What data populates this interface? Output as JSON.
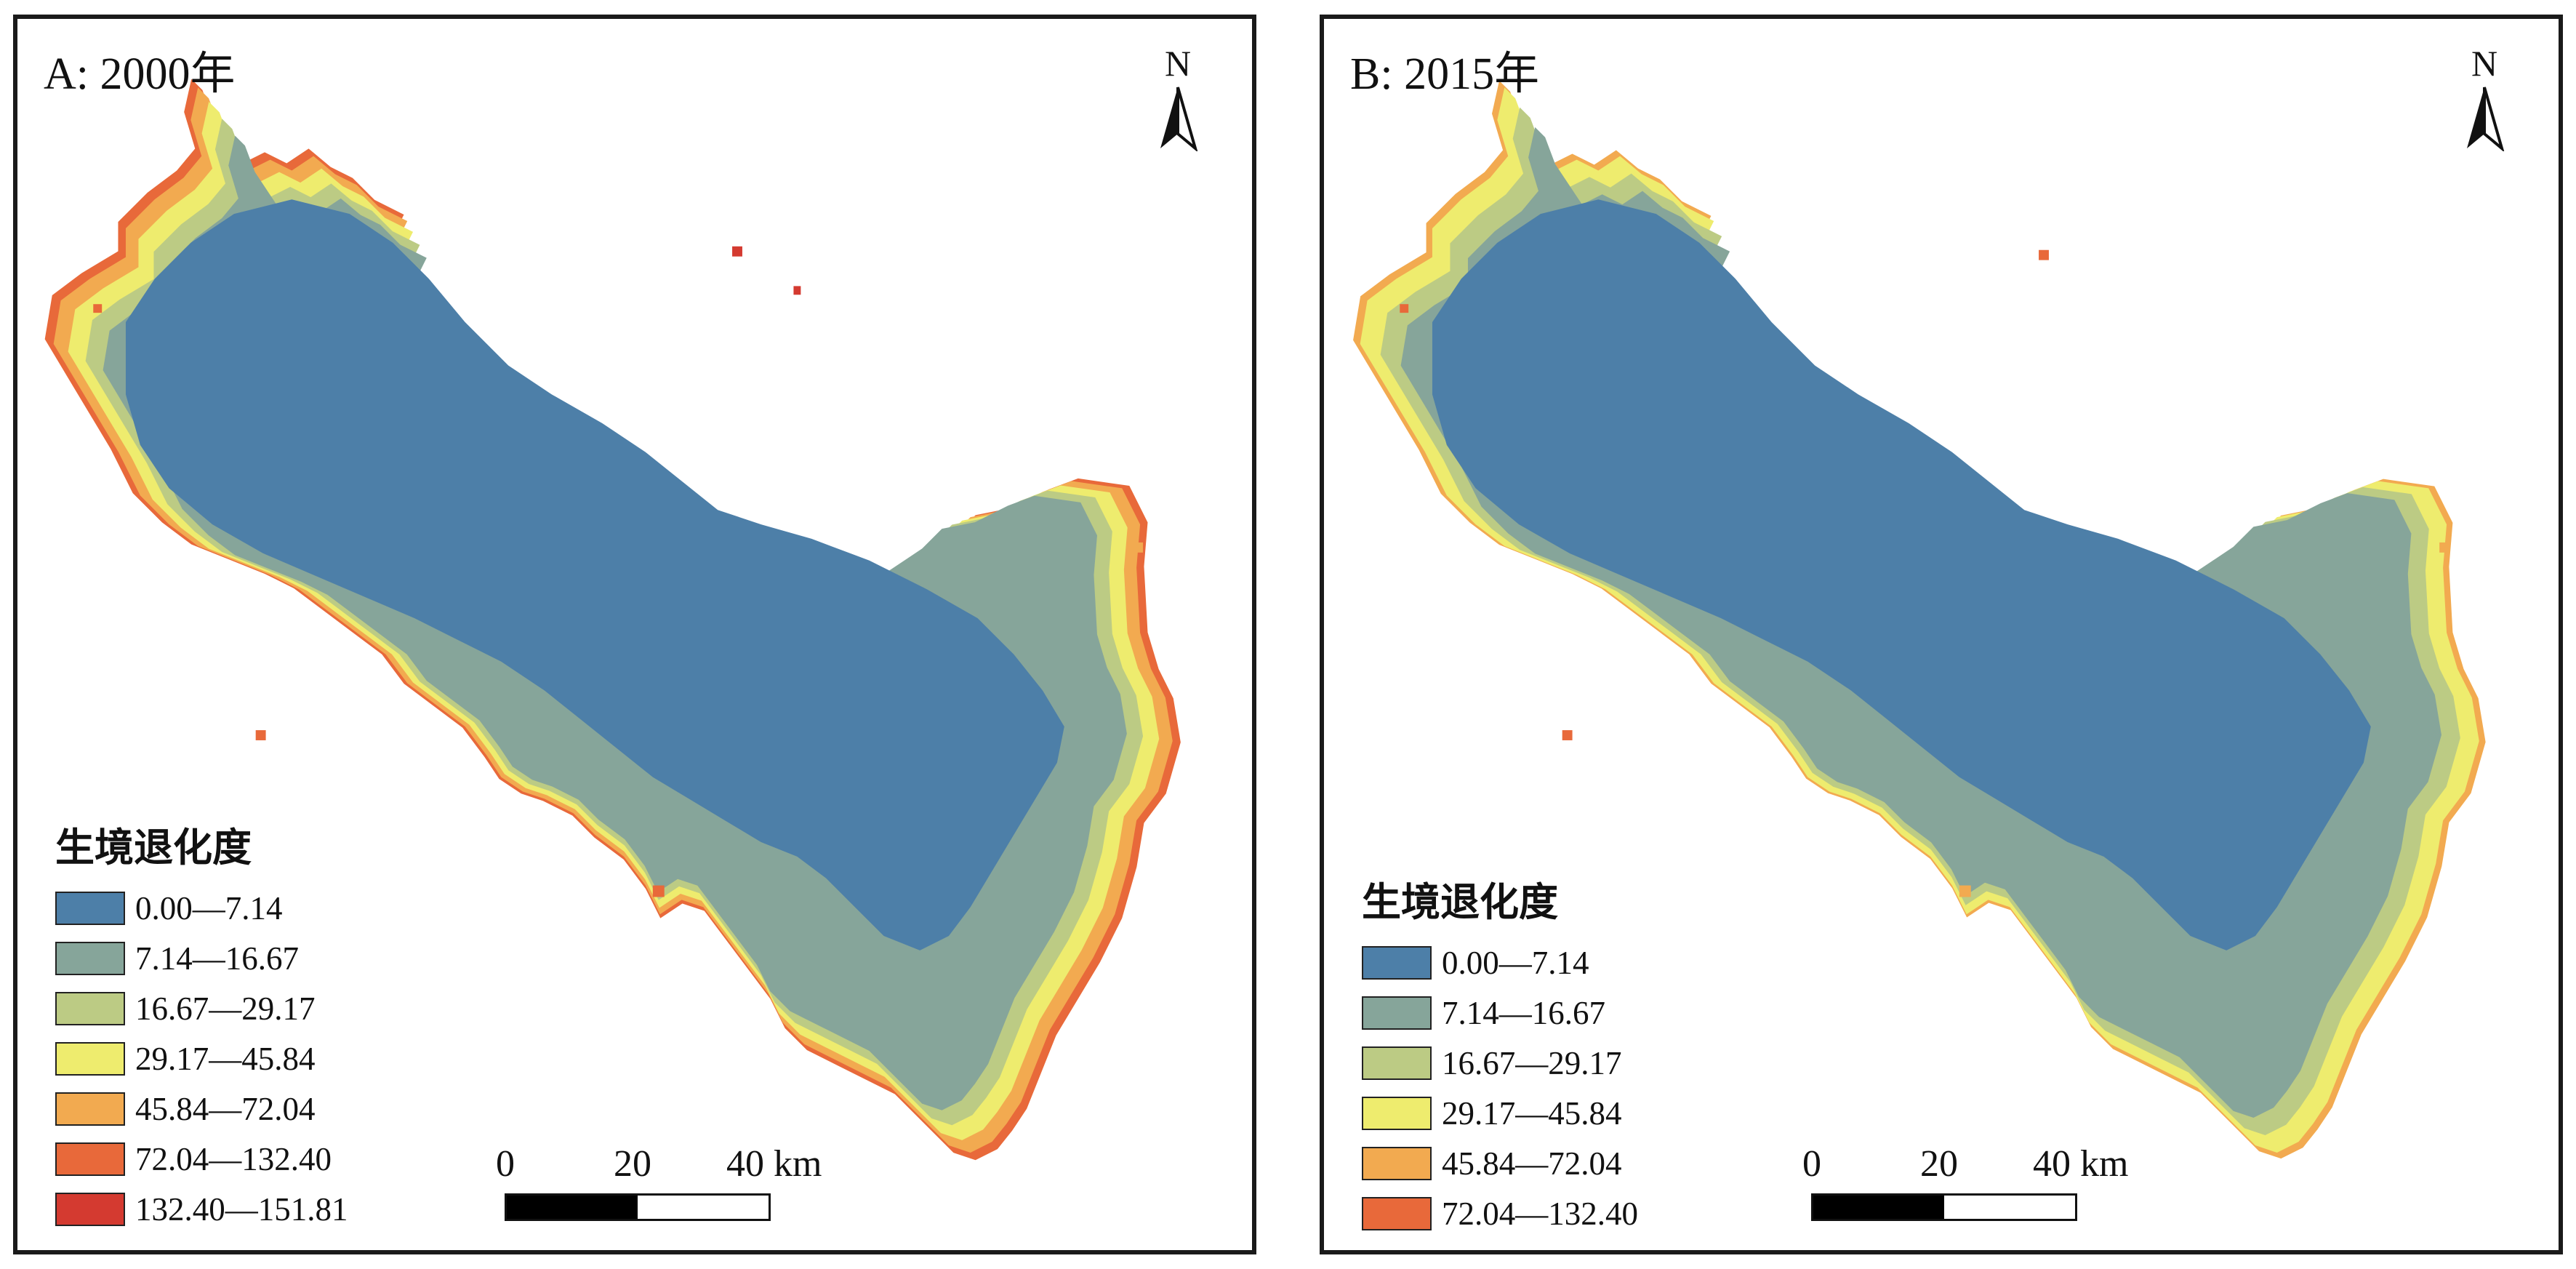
{
  "colors": {
    "class_1": "#4d7fa8",
    "class_2": "#86a59a",
    "class_3": "#bccb84",
    "class_4": "#eeec6e",
    "class_5": "#f2aa50",
    "class_6": "#e8693a",
    "class_7": "#d43a30",
    "frame": "#1a1a1a"
  },
  "north_arrow": {
    "label": "N",
    "icon": "north-arrow-icon"
  },
  "panels": [
    {
      "title": "A: 2000年",
      "legend": {
        "title": "生境退化度",
        "items": [
          {
            "label": "0.00—7.14",
            "color": "#4d7fa8"
          },
          {
            "label": "7.14—16.67",
            "color": "#86a59a"
          },
          {
            "label": "16.67—29.17",
            "color": "#bccb84"
          },
          {
            "label": "29.17—45.84",
            "color": "#eeec6e"
          },
          {
            "label": "45.84—72.04",
            "color": "#f2aa50"
          },
          {
            "label": "72.04—132.40",
            "color": "#e8693a"
          },
          {
            "label": "132.40—151.81",
            "color": "#d43a30"
          }
        ]
      },
      "scale": {
        "labels": [
          "0",
          "20",
          "40 km"
        ]
      }
    },
    {
      "title": "B: 2015年",
      "legend": {
        "title": "生境退化度",
        "items": [
          {
            "label": "0.00—7.14",
            "color": "#4d7fa8"
          },
          {
            "label": "7.14—16.67",
            "color": "#86a59a"
          },
          {
            "label": "16.67—29.17",
            "color": "#bccb84"
          },
          {
            "label": "29.17—45.84",
            "color": "#eeec6e"
          },
          {
            "label": "45.84—72.04",
            "color": "#f2aa50"
          },
          {
            "label": "72.04—132.40",
            "color": "#e8693a"
          }
        ]
      },
      "scale": {
        "labels": [
          "0",
          "20",
          "40 km"
        ]
      }
    }
  ]
}
